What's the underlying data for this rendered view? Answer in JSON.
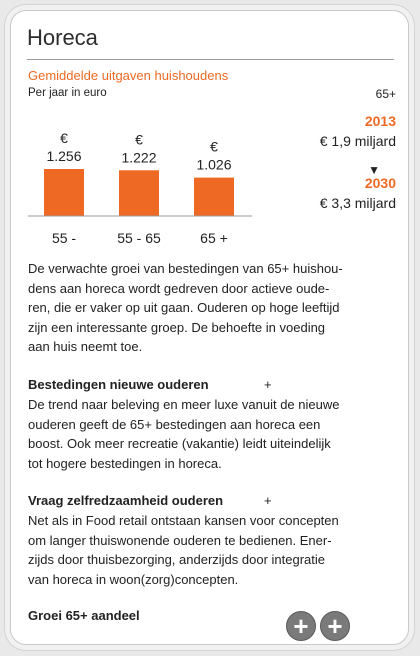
{
  "card": {
    "title": "Horeca",
    "subtitle": "Gemiddelde uitgaven huishoudens",
    "unit": "Per jaar in euro",
    "age_label": "65+"
  },
  "chart_data": {
    "type": "bar",
    "categories": [
      "55 -",
      "55 - 65",
      "65 +"
    ],
    "values": [
      1256,
      1222,
      1026
    ],
    "value_labels": [
      "1.256",
      "1.222",
      "1.026"
    ],
    "currency": "€",
    "ylim": [
      0,
      1256
    ],
    "bar_color": "#ee6a24"
  },
  "projection": {
    "year_from": "2013",
    "amount_from": "€ 1,9 miljard",
    "year_to": "2030",
    "amount_to": "€ 3,3 miljard",
    "arrow": "▼"
  },
  "intro": [
    "De verwachte groei van bestedingen van 65+ huishou-",
    "dens aan horeca wordt gedreven door actieve oude-",
    "ren, die er vaker op uit gaan. Ouderen op hoge leeftijd",
    "zijn een interessante groep. De behoefte in voeding",
    "aan huis neemt toe."
  ],
  "sections": [
    {
      "heading": "Bestedingen nieuwe ouderen",
      "plus": "+",
      "lines": [
        "De trend naar beleving en meer luxe vanuit de nieuwe",
        "ouderen geeft de 65+ bestedingen aan horeca een",
        "boost. Ook meer recreatie (vakantie) leidt uiteindelijk",
        "tot hogere bestedingen in horeca."
      ]
    },
    {
      "heading": "Vraag zelfredzaamheid ouderen",
      "plus": "+",
      "lines": [
        "Net als in Food retail ontstaan kansen voor concepten",
        "om langer thuiswonende ouderen te bedienen. Ener-",
        "zijds door thuisbezorging, anderzijds door integratie",
        "van horeca in woon(zorg)concepten."
      ]
    }
  ],
  "footer": {
    "heading": "Groei 65+ aandeel",
    "button_1": "+",
    "button_2": "+"
  }
}
